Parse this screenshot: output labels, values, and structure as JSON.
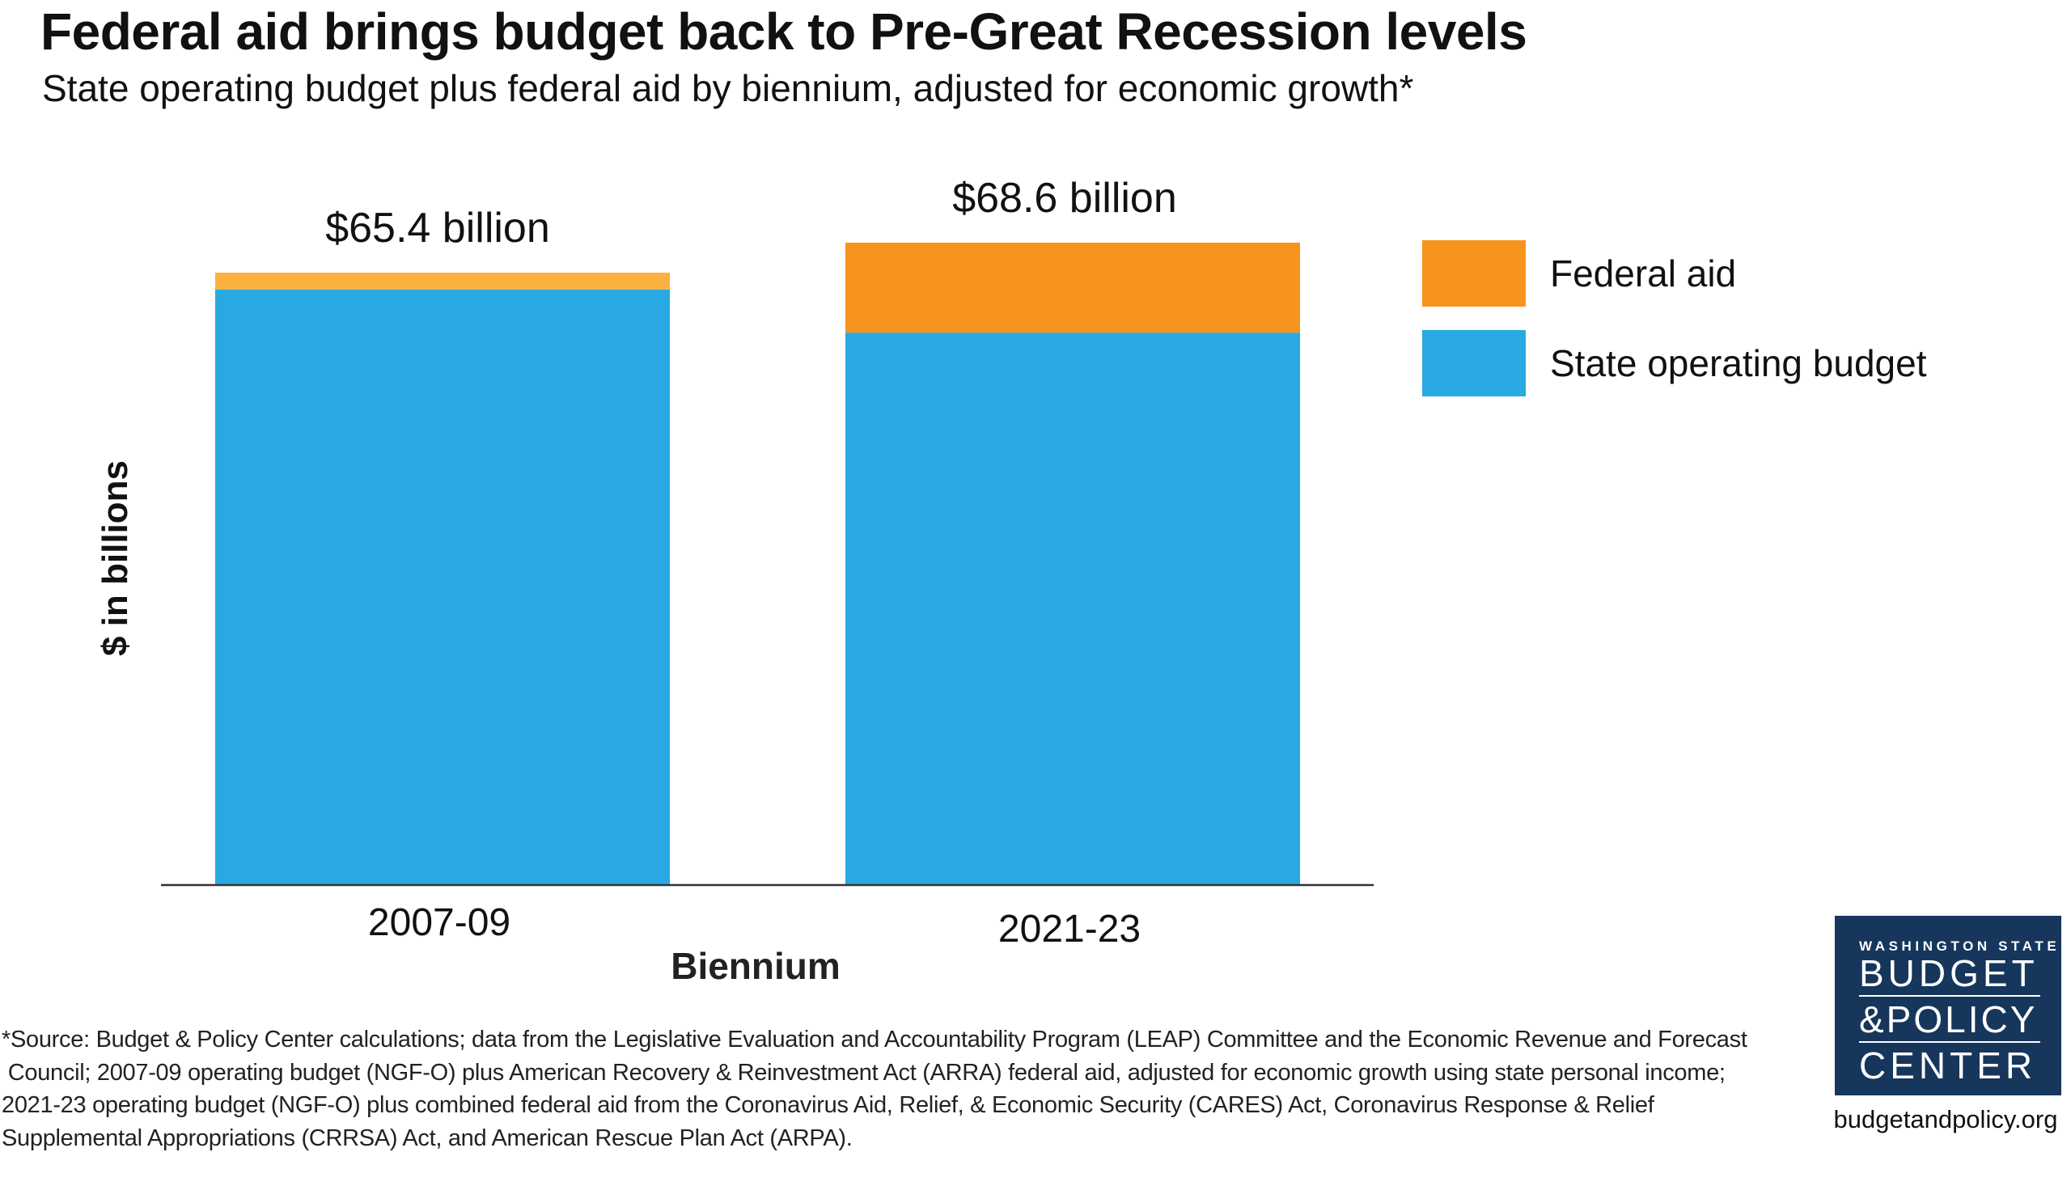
{
  "header": {
    "title": "Federal aid brings budget back to Pre-Great Recession levels",
    "subtitle": "State operating budget plus federal aid by biennium, adjusted for economic growth*"
  },
  "chart_data": {
    "type": "bar",
    "stacked": true,
    "title": "Federal aid brings budget back to Pre-Great Recession levels",
    "subtitle": "State operating budget plus federal aid by biennium, adjusted for economic growth*",
    "xlabel": "Biennium",
    "ylabel": "$ in billions",
    "categories": [
      "2007-09",
      "2021-23"
    ],
    "series": [
      {
        "name": "State operating budget",
        "values": [
          63.6,
          59.0
        ],
        "colors": [
          "#29a9e1",
          "#29a9e1"
        ]
      },
      {
        "name": "Federal aid",
        "values": [
          1.8,
          9.6
        ],
        "colors": [
          "#fbb040",
          "#f7941d"
        ]
      }
    ],
    "totals": [
      65.4,
      68.6
    ],
    "data_labels": [
      "$65.4 billion",
      "$68.6 billion"
    ],
    "ylim": [
      0,
      68.6
    ],
    "grid": false,
    "y_ticks_shown": false,
    "legend": {
      "placement": "top-right",
      "entries": [
        {
          "label": "Federal aid",
          "color": "#f7941d"
        },
        {
          "label": "State operating budget",
          "color": "#29a9e1"
        }
      ]
    }
  },
  "footnote": {
    "lines": [
      "*Source: Budget & Policy Center calculations; data from the Legislative Evaluation and Accountability Program (LEAP) Committee and the Economic Revenue and Forecast",
      " Council; 2007-09 operating budget (NGF-O) plus American Recovery & Reinvestment Act (ARRA) federal aid, adjusted for economic growth using state personal income;",
      "2021-23 operating budget (NGF-O) plus combined federal aid from the Coronavirus Aid, Relief, & Economic Security (CARES) Act, Coronavirus Response & Relief",
      "Supplemental Appropriations (CRRSA) Act, and American Rescue Plan Act (ARPA)."
    ]
  },
  "branding": {
    "logo_line1": "WASHINGTON STATE",
    "logo_line2": "BUDGET",
    "logo_line3": "&POLICY",
    "logo_line4": "CENTER",
    "logo_color": "#16365c",
    "website": "budgetandpolicy.org"
  }
}
